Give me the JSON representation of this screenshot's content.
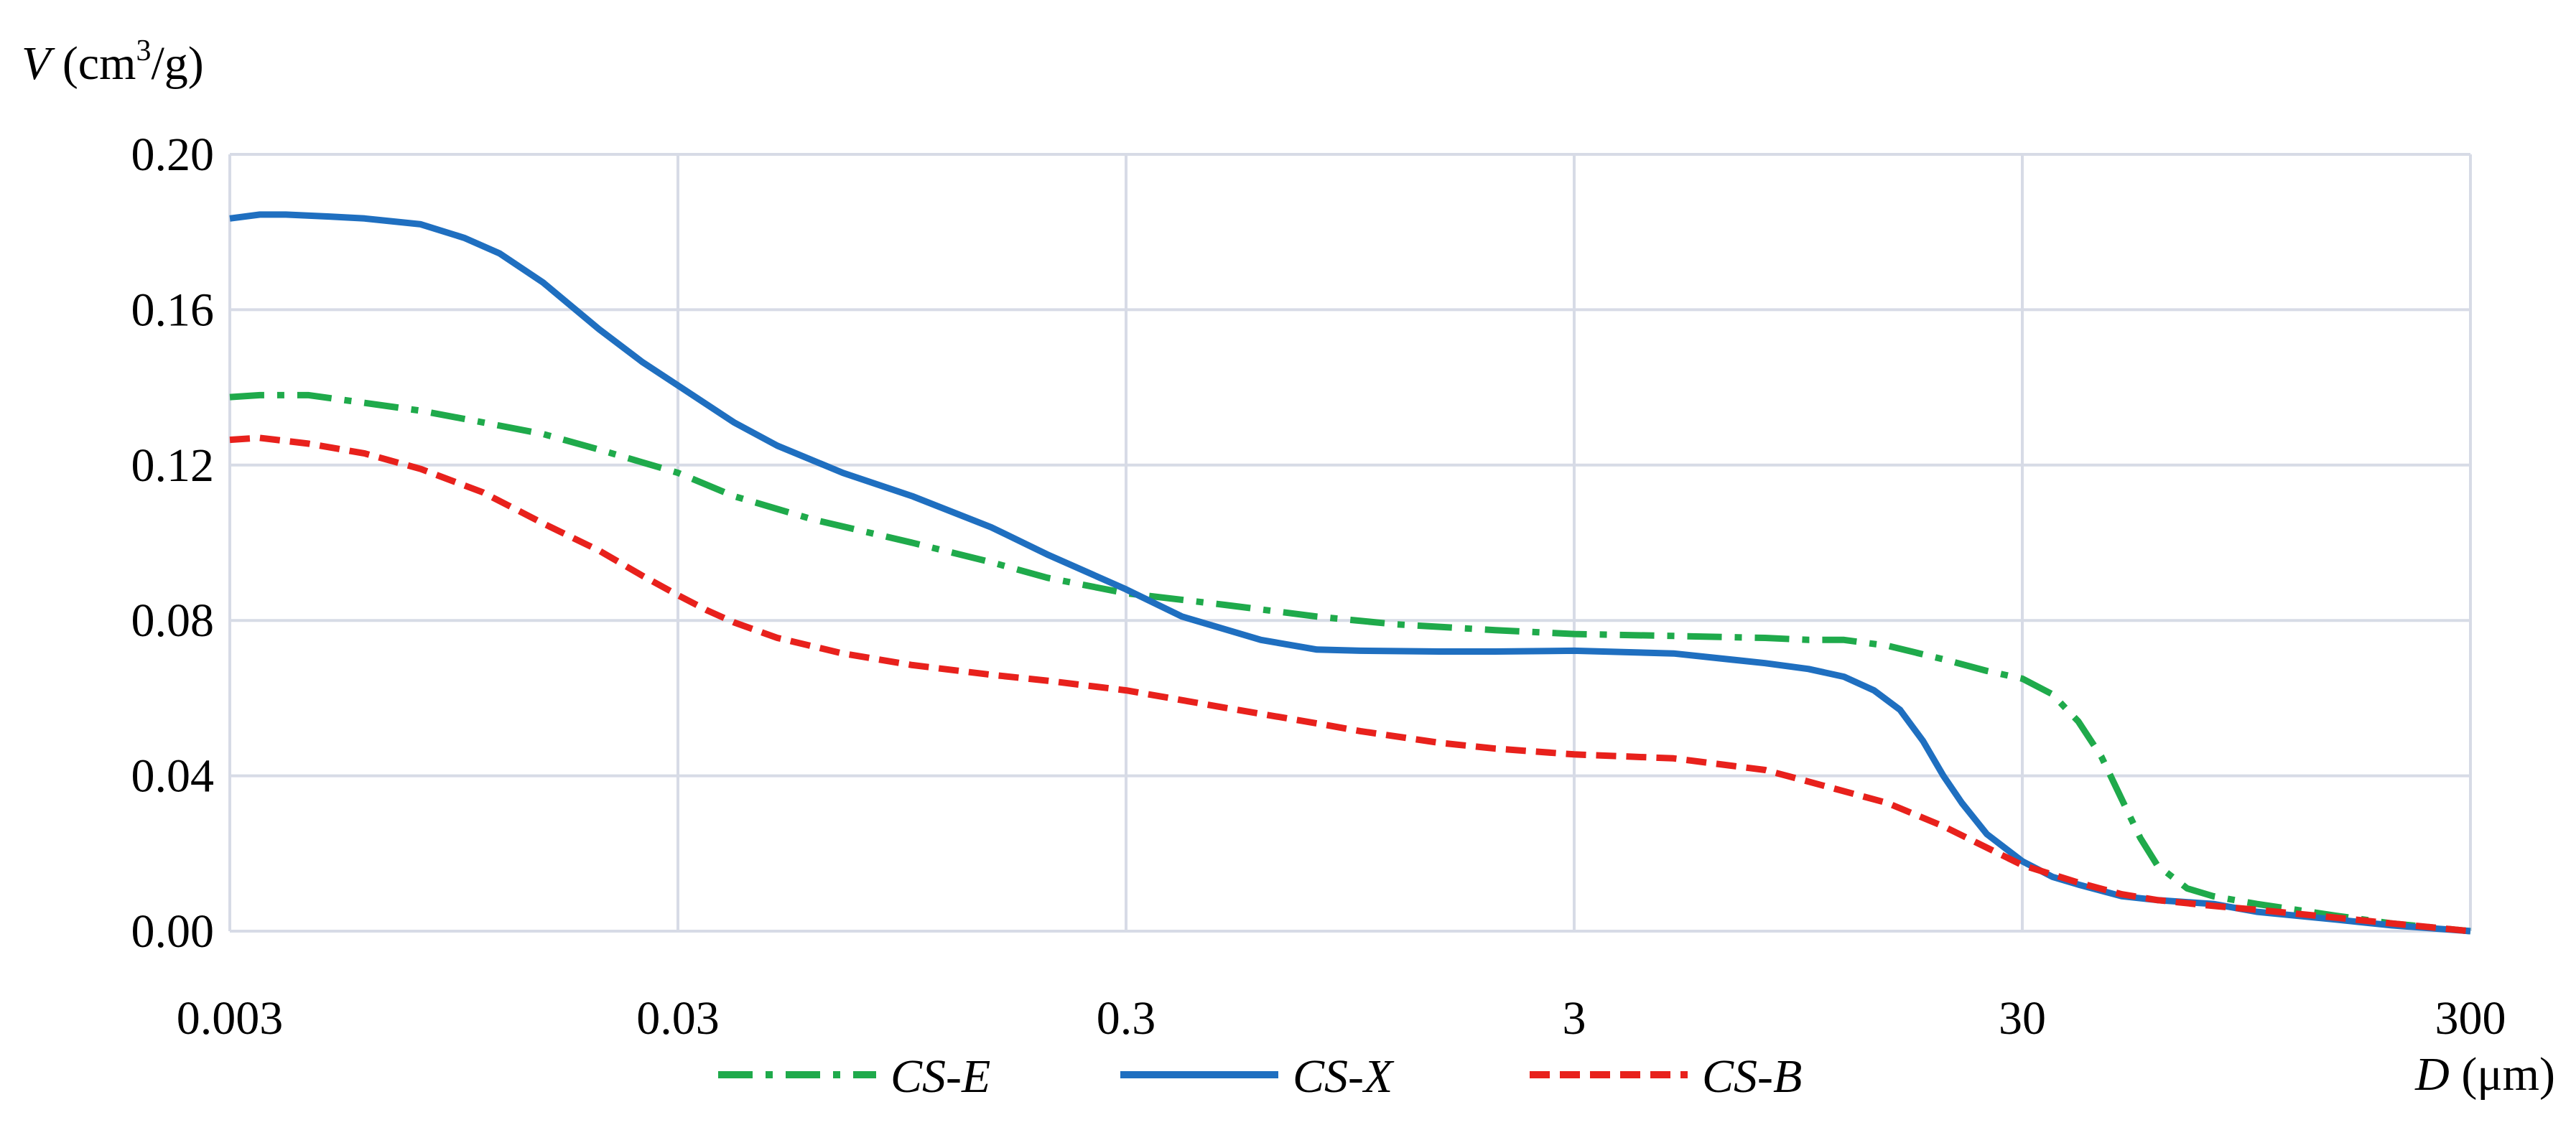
{
  "chart_data": {
    "type": "line",
    "xscale": "log",
    "xlim": [
      0.003,
      300
    ],
    "ylim": [
      0.0,
      0.2
    ],
    "grid": true,
    "legend_position": "bottom",
    "ylabel_var": "V",
    "ylabel_unit_pre": " (cm",
    "ylabel_unit_sup": "3",
    "ylabel_unit_post": "/g)",
    "xlabel_var": "D",
    "xlabel_unit": " (μm)",
    "x_ticks": [
      {
        "value": 0.003,
        "label": "0.003"
      },
      {
        "value": 0.03,
        "label": "0.03"
      },
      {
        "value": 0.3,
        "label": "0.3"
      },
      {
        "value": 3,
        "label": "3"
      },
      {
        "value": 30,
        "label": "30"
      },
      {
        "value": 300,
        "label": "300"
      }
    ],
    "y_ticks": [
      {
        "value": 0.0,
        "label": "0.00"
      },
      {
        "value": 0.04,
        "label": "0.04"
      },
      {
        "value": 0.08,
        "label": "0.08"
      },
      {
        "value": 0.12,
        "label": "0.12"
      },
      {
        "value": 0.16,
        "label": "0.16"
      },
      {
        "value": 0.2,
        "label": "0.20"
      }
    ],
    "series": [
      {
        "name": "CS-E",
        "color": "#1faa4b",
        "style": "dash-dot",
        "x": [
          0.003,
          0.0035,
          0.0045,
          0.006,
          0.008,
          0.011,
          0.015,
          0.02,
          0.03,
          0.04,
          0.06,
          0.1,
          0.15,
          0.2,
          0.3,
          0.5,
          0.8,
          1.2,
          2,
          3,
          5,
          8,
          10,
          12,
          15,
          20,
          25,
          30,
          35,
          40,
          45,
          50,
          55,
          60,
          70,
          80,
          100,
          150,
          200,
          300
        ],
        "y": [
          0.1375,
          0.138,
          0.138,
          0.136,
          0.134,
          0.131,
          0.128,
          0.124,
          0.118,
          0.112,
          0.106,
          0.1,
          0.095,
          0.091,
          0.087,
          0.084,
          0.081,
          0.079,
          0.0775,
          0.0765,
          0.076,
          0.0755,
          0.075,
          0.075,
          0.0735,
          0.07,
          0.067,
          0.065,
          0.061,
          0.054,
          0.045,
          0.034,
          0.024,
          0.017,
          0.011,
          0.009,
          0.007,
          0.004,
          0.002,
          0.0
        ]
      },
      {
        "name": "CS-X",
        "color": "#1f6fc0",
        "style": "solid",
        "x": [
          0.003,
          0.0035,
          0.004,
          0.005,
          0.006,
          0.008,
          0.01,
          0.012,
          0.015,
          0.02,
          0.025,
          0.03,
          0.04,
          0.05,
          0.07,
          0.1,
          0.15,
          0.2,
          0.3,
          0.4,
          0.6,
          0.8,
          1,
          1.5,
          2,
          3,
          5,
          8,
          10,
          12,
          14,
          16,
          18,
          20,
          22,
          25,
          30,
          35,
          40,
          50,
          60,
          80,
          100,
          150,
          200,
          300
        ],
        "y": [
          0.1835,
          0.1845,
          0.1845,
          0.184,
          0.1835,
          0.182,
          0.1785,
          0.1745,
          0.167,
          0.155,
          0.1465,
          0.1405,
          0.131,
          0.125,
          0.118,
          0.112,
          0.104,
          0.097,
          0.088,
          0.081,
          0.075,
          0.0725,
          0.0722,
          0.072,
          0.072,
          0.0722,
          0.0715,
          0.069,
          0.0675,
          0.0655,
          0.062,
          0.057,
          0.049,
          0.04,
          0.033,
          0.025,
          0.018,
          0.014,
          0.012,
          0.009,
          0.008,
          0.007,
          0.005,
          0.003,
          0.0015,
          0.0
        ]
      },
      {
        "name": "CS-B",
        "color": "#e8211c",
        "style": "dashed",
        "x": [
          0.003,
          0.0035,
          0.0045,
          0.006,
          0.008,
          0.011,
          0.015,
          0.02,
          0.025,
          0.03,
          0.035,
          0.04,
          0.05,
          0.07,
          0.1,
          0.15,
          0.2,
          0.3,
          0.5,
          0.8,
          1,
          1.5,
          2,
          3,
          5,
          8,
          10,
          15,
          20,
          25,
          30,
          40,
          50,
          60,
          80,
          100,
          150,
          200,
          300
        ],
        "y": [
          0.1265,
          0.127,
          0.1255,
          0.123,
          0.119,
          0.113,
          0.105,
          0.098,
          0.0915,
          0.0865,
          0.0825,
          0.0795,
          0.0755,
          0.0715,
          0.0685,
          0.066,
          0.0645,
          0.062,
          0.0575,
          0.0535,
          0.0515,
          0.0485,
          0.047,
          0.0455,
          0.0445,
          0.0415,
          0.0385,
          0.033,
          0.027,
          0.0215,
          0.017,
          0.0125,
          0.0095,
          0.008,
          0.0065,
          0.0055,
          0.0035,
          0.002,
          0.0
        ]
      }
    ]
  }
}
